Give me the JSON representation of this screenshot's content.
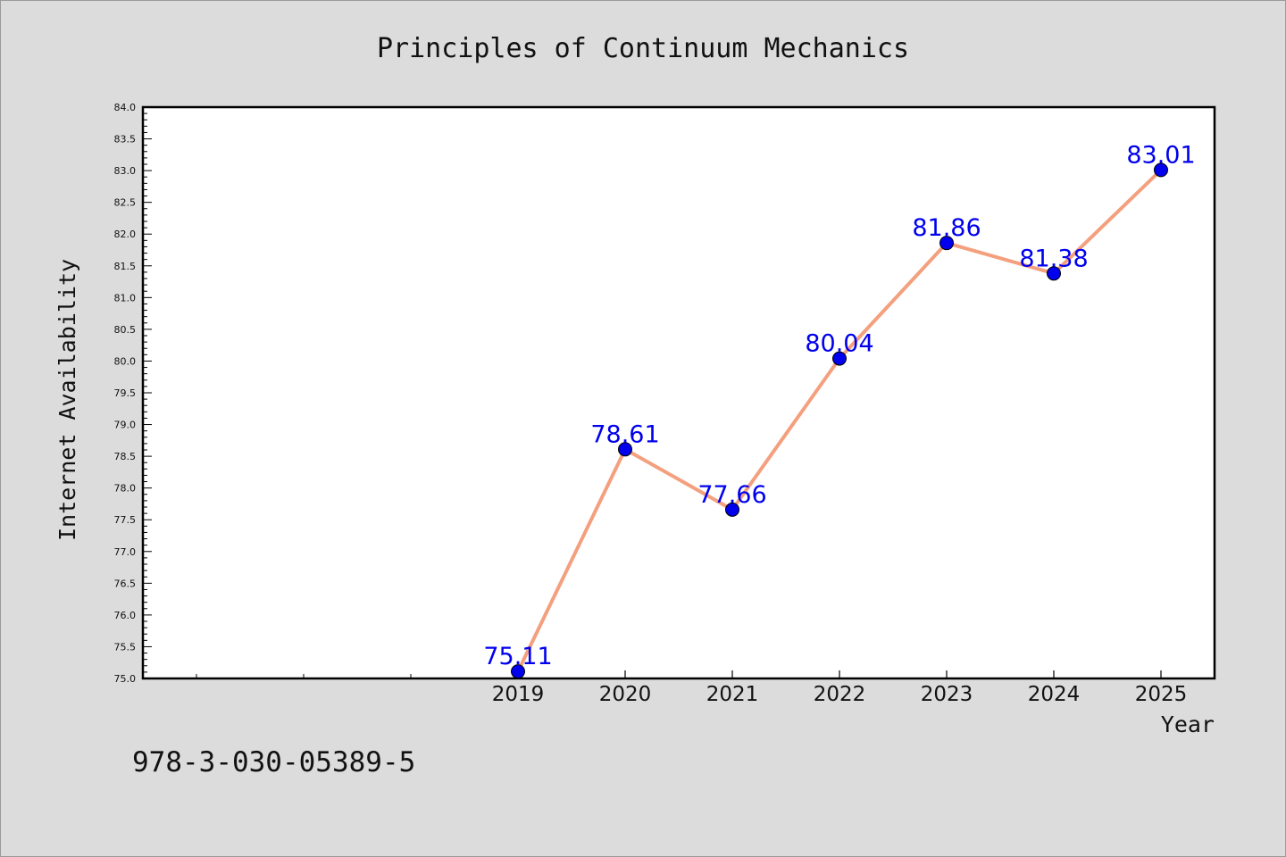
{
  "chart_data": {
    "type": "line",
    "title": "Principles of Continuum Mechanics",
    "xlabel": "Year",
    "ylabel": "Internet Availability",
    "x": [
      "2019",
      "2020",
      "2021",
      "2022",
      "2023",
      "2024",
      "2025"
    ],
    "series": [
      {
        "values": [
          75.11,
          78.61,
          77.66,
          80.04,
          81.86,
          81.38,
          83.01
        ]
      }
    ],
    "data_labels": [
      "75.11",
      "78.61",
      "77.66",
      "80.04",
      "81.86",
      "81.38",
      "83.01"
    ],
    "ylim": [
      75.0,
      84.0
    ],
    "y_ticks": [
      "75.0",
      "75.5",
      "76.0",
      "76.5",
      "77.0",
      "77.5",
      "78.0",
      "78.5",
      "79.0",
      "79.5",
      "80.0",
      "80.5",
      "81.0",
      "81.5",
      "82.0",
      "82.5",
      "83.0",
      "83.5",
      "84.0"
    ],
    "grid": false,
    "legend": "none",
    "line_color": "#f4a07e",
    "marker_color": "#0000ee",
    "label_color": "#0000ee"
  },
  "footer": {
    "isbn": "978-3-030-05389-5"
  }
}
